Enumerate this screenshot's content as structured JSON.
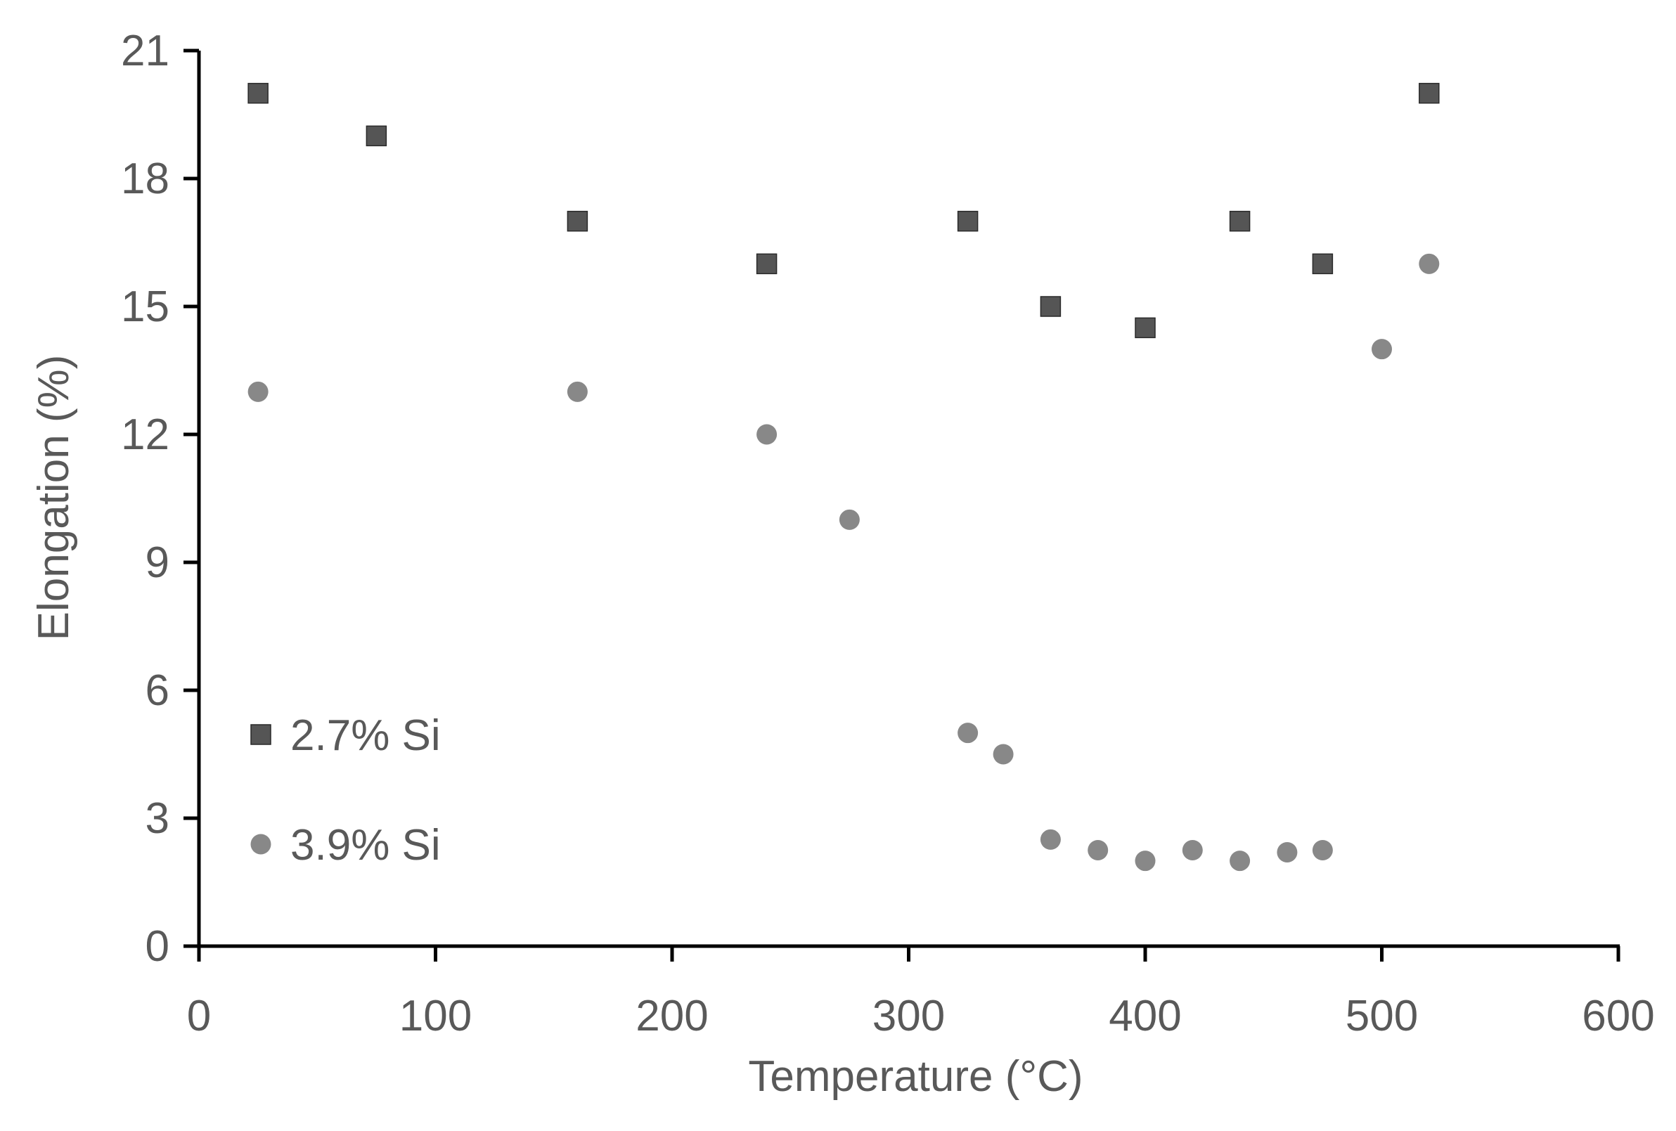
{
  "chart_data": {
    "type": "scatter",
    "title": "",
    "xlabel": "Temperature (°C)",
    "ylabel": "Elongation (%)",
    "xlim": [
      0,
      600
    ],
    "ylim": [
      0,
      21
    ],
    "xticks": [
      0,
      100,
      200,
      300,
      400,
      500,
      600
    ],
    "yticks": [
      0,
      3,
      6,
      9,
      12,
      15,
      18,
      21
    ],
    "grid": false,
    "legend": "bottom-left",
    "series": [
      {
        "name": "2.7% Si",
        "marker": "square",
        "color": "#555555",
        "x": [
          25,
          75,
          160,
          240,
          325,
          360,
          400,
          440,
          475,
          520
        ],
        "y": [
          20,
          19,
          17,
          16,
          17,
          15,
          14.5,
          17,
          16,
          20
        ]
      },
      {
        "name": "3.9% Si",
        "marker": "circle",
        "color": "#888888",
        "x": [
          25,
          160,
          240,
          275,
          325,
          340,
          360,
          380,
          400,
          420,
          440,
          460,
          475,
          500,
          520
        ],
        "y": [
          13,
          13,
          12,
          10,
          5,
          4.5,
          2.5,
          2.25,
          2,
          2.25,
          2,
          2.2,
          2.25,
          14,
          16
        ]
      }
    ]
  }
}
